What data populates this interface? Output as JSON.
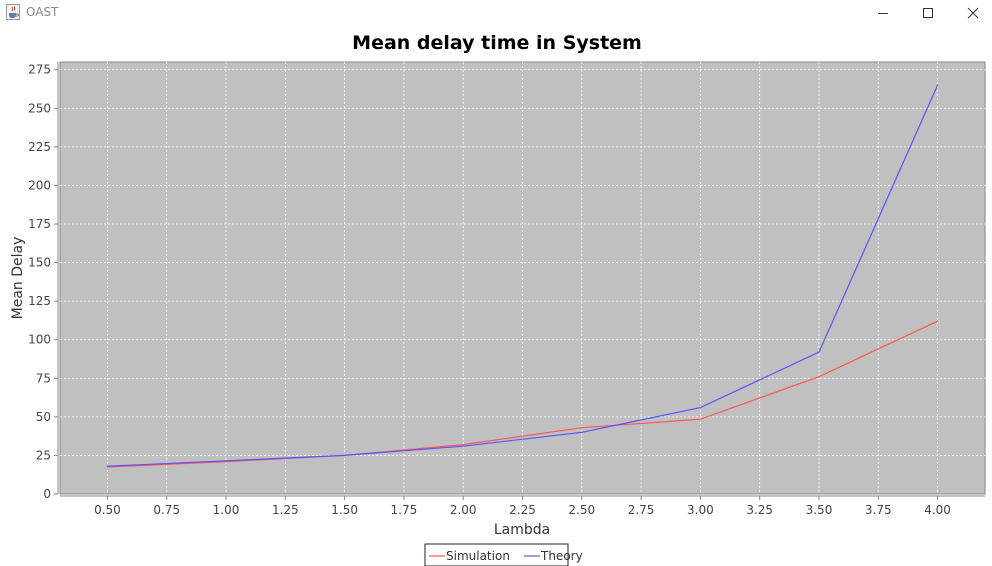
{
  "window": {
    "title": "OAST",
    "icons": {
      "app": "java-cup-icon",
      "minimize": "minimize-icon",
      "maximize": "maximize-icon",
      "close": "close-icon"
    }
  },
  "colors": {
    "plot_background": "#c0c0c0",
    "gridline": "#ffffff",
    "simulation": "#ff5555",
    "theory": "#5555ff"
  },
  "chart_data": {
    "type": "line",
    "title": "Mean delay time in System",
    "xlabel": "Lambda",
    "ylabel": "Mean Delay",
    "xlim": [
      0.3,
      4.2
    ],
    "ylim": [
      0,
      280
    ],
    "x_ticks": [
      "0.50",
      "0.75",
      "1.00",
      "1.25",
      "1.50",
      "1.75",
      "2.00",
      "2.25",
      "2.50",
      "2.75",
      "3.00",
      "3.25",
      "3.50",
      "3.75",
      "4.00"
    ],
    "y_ticks": [
      "0",
      "25",
      "50",
      "75",
      "100",
      "125",
      "150",
      "175",
      "200",
      "225",
      "250",
      "275"
    ],
    "grid": true,
    "legend_position": "bottom-center",
    "x": [
      0.5,
      1.0,
      1.5,
      2.0,
      2.5,
      3.0,
      3.5,
      4.0
    ],
    "series": [
      {
        "name": "Simulation",
        "color": "#ff5555",
        "values": [
          17.5,
          21,
          25,
          32,
          43,
          48.5,
          76,
          112
        ]
      },
      {
        "name": "Theory",
        "color": "#5555ff",
        "values": [
          18,
          21.5,
          25,
          31,
          40,
          56,
          92,
          265
        ]
      }
    ]
  }
}
